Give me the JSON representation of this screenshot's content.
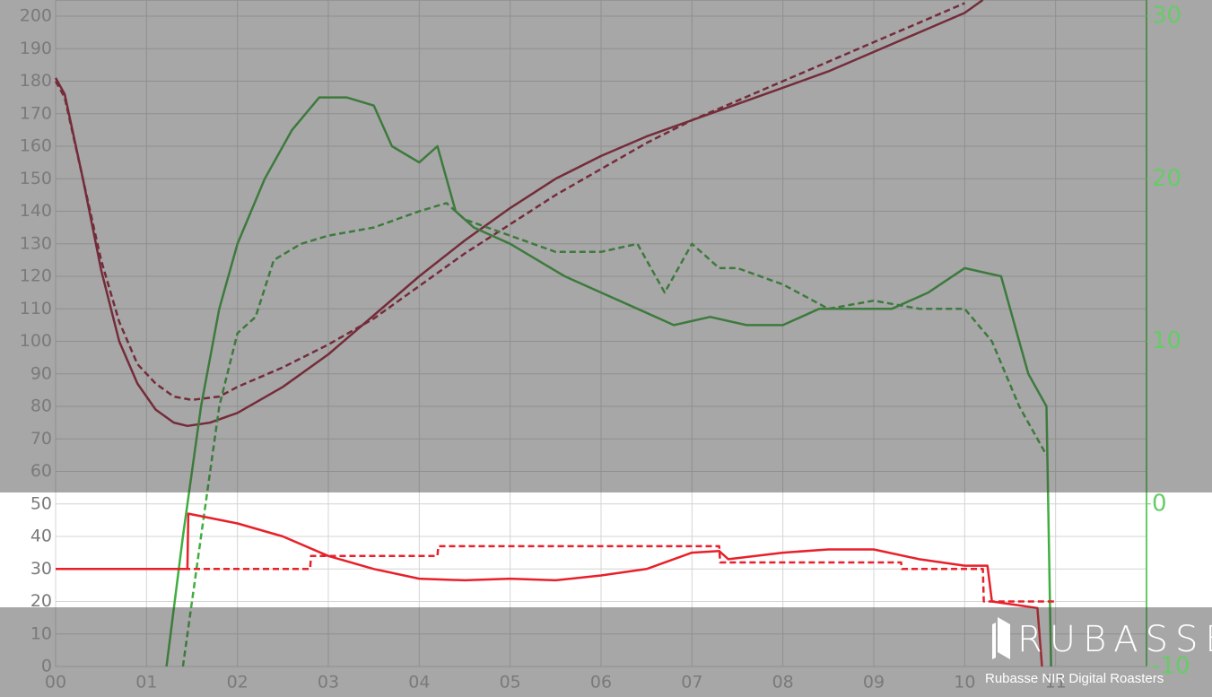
{
  "chart_data": {
    "type": "line",
    "xlim": [
      0,
      12
    ],
    "xticks": [
      {
        "value": 0,
        "label": "00"
      },
      {
        "value": 1,
        "label": "01"
      },
      {
        "value": 2,
        "label": "02"
      },
      {
        "value": 3,
        "label": "03"
      },
      {
        "value": 4,
        "label": "04"
      },
      {
        "value": 5,
        "label": "05"
      },
      {
        "value": 6,
        "label": "06"
      },
      {
        "value": 7,
        "label": "07"
      },
      {
        "value": 8,
        "label": "08"
      },
      {
        "value": 9,
        "label": "09"
      },
      {
        "value": 10,
        "label": "10"
      },
      {
        "value": 11,
        "label": "11"
      }
    ],
    "ylim": [
      0,
      200
    ],
    "yticks": [
      0,
      10,
      20,
      30,
      40,
      50,
      60,
      70,
      80,
      90,
      100,
      110,
      120,
      130,
      140,
      150,
      160,
      170,
      180,
      190,
      200
    ],
    "y2lim": [
      -10,
      30
    ],
    "y2ticks": [
      -10,
      0,
      10,
      20,
      30
    ],
    "grid": true,
    "series": [
      {
        "color": "#a3203a",
        "dashed": false,
        "x": [
          0,
          0.1,
          0.3,
          0.5,
          0.7,
          0.9,
          1.1,
          1.3,
          1.45,
          1.7,
          2,
          2.5,
          3,
          3.5,
          4,
          4.5,
          5,
          5.5,
          6,
          6.5,
          7,
          7.5,
          8,
          8.5,
          9,
          9.5,
          10,
          10.2
        ],
        "values": [
          181,
          176,
          150,
          122,
          100,
          87,
          79,
          75,
          74,
          75,
          78,
          86,
          96,
          108,
          120,
          131,
          141,
          150,
          157,
          163,
          168,
          173,
          178,
          183,
          189,
          195,
          201,
          205
        ]
      },
      {
        "color": "#a3203a",
        "dashed": true,
        "x": [
          0,
          0.1,
          0.3,
          0.5,
          0.7,
          0.9,
          1.1,
          1.3,
          1.5,
          1.8,
          2,
          2.5,
          3,
          3.5,
          4,
          4.5,
          5,
          5.5,
          6,
          6.5,
          7,
          7.5,
          8,
          8.5,
          9,
          9.5,
          10
        ],
        "values": [
          180,
          175,
          150,
          125,
          106,
          93,
          87,
          83,
          82,
          83,
          86,
          92,
          99,
          107,
          117,
          127,
          136,
          145,
          153,
          161,
          168,
          174,
          180,
          186,
          192,
          198,
          204
        ]
      },
      {
        "color": "#3fae3f",
        "dashed": false,
        "axis": "y2",
        "x": [
          1.22,
          1.4,
          1.6,
          1.8,
          2,
          2.3,
          2.6,
          2.9,
          3.2,
          3.5,
          3.7,
          4,
          4.2,
          4.4,
          4.6,
          5,
          5.3,
          5.6,
          6,
          6.4,
          6.8,
          7.2,
          7.6,
          8,
          8.4,
          8.8,
          9.2,
          9.6,
          10,
          10.4,
          10.6,
          10.7,
          10.9,
          10.95
        ],
        "values": [
          -10,
          -2,
          6,
          12,
          16,
          20,
          23,
          25,
          25,
          24.5,
          22,
          21,
          22,
          18,
          17,
          16,
          15,
          14,
          13,
          12,
          11,
          11.5,
          11,
          11,
          12,
          12,
          12,
          13,
          14.5,
          14,
          10,
          8,
          6,
          -10
        ]
      },
      {
        "color": "#3fae3f",
        "dashed": true,
        "axis": "y2",
        "x": [
          1.4,
          1.6,
          1.8,
          2,
          2.2,
          2.4,
          2.7,
          3,
          3.5,
          4,
          4.3,
          4.5,
          5,
          5.5,
          6,
          6.4,
          6.7,
          7,
          7.3,
          7.5,
          8,
          8.5,
          9,
          9.5,
          10,
          10.3,
          10.6,
          10.9
        ],
        "values": [
          -10,
          -2,
          6,
          10.5,
          11.5,
          15,
          16,
          16.5,
          17,
          18,
          18.5,
          17.5,
          16.5,
          15.5,
          15.5,
          16,
          13,
          16,
          14.5,
          14.5,
          13.5,
          12,
          12.5,
          12,
          12,
          10,
          6,
          3
        ]
      },
      {
        "color": "#e8202a",
        "dashed": false,
        "x": [
          0,
          1.45,
          1.46,
          2,
          2.5,
          3,
          3.5,
          4,
          4.5,
          5,
          5.5,
          6,
          6.5,
          7,
          7.3,
          7.4,
          8,
          8.5,
          9,
          9.5,
          10,
          10.25,
          10.3,
          10.8,
          10.85
        ],
        "values": [
          30,
          30,
          47,
          44,
          40,
          34,
          30,
          27,
          26.5,
          27,
          26.5,
          28,
          30,
          35,
          35.5,
          33,
          35,
          36,
          36,
          33,
          31,
          31,
          20,
          18,
          0
        ]
      },
      {
        "color": "#e8202a",
        "dashed": true,
        "x": [
          0,
          2.8,
          2.81,
          4.2,
          4.21,
          7.3,
          7.31,
          9.3,
          9.31,
          10.2,
          10.21,
          11
        ],
        "values": [
          30,
          30,
          34,
          34,
          37,
          37,
          32,
          32,
          30,
          30,
          20,
          20
        ]
      }
    ]
  },
  "watermark": {
    "logo": "RUBASSE",
    "tagline": "Rubasse NIR Digital Roasters"
  }
}
